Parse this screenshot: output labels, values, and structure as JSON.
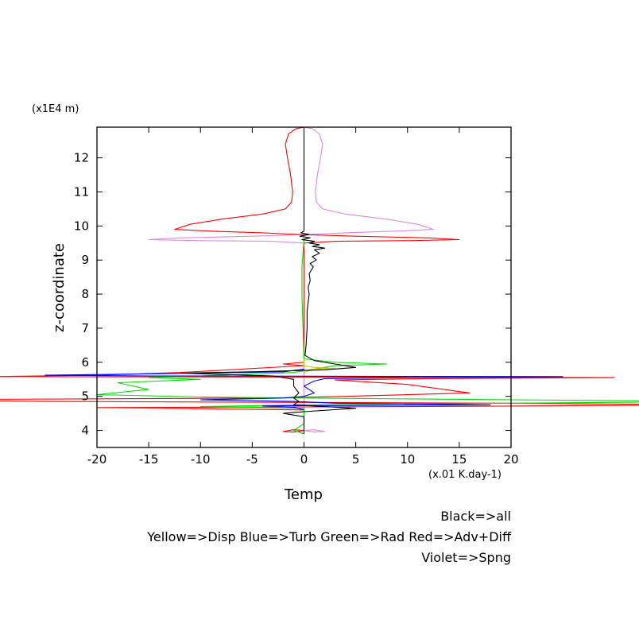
{
  "chart_data": {
    "type": "line",
    "xlabel": "Temp",
    "xunit": "(x.01 K.day-1)",
    "ylabel": "z-coordinate",
    "yunit": "(x1E4 m)",
    "xlim": [
      -20,
      20
    ],
    "ylim": [
      3.5,
      12.9
    ],
    "xticks": [
      -20,
      -15,
      -10,
      -5,
      0,
      5,
      10,
      15,
      20
    ],
    "yticks": [
      4,
      5,
      6,
      7,
      8,
      9,
      10,
      11,
      12
    ],
    "legend": [
      "Black=>all",
      "Yellow=>Disp Blue=>Turb Green=>Rad Red=>Adv+Diff",
      "Violet=>Spng"
    ],
    "colors": {
      "all": "#000000",
      "disp": "#c8c800",
      "turb": "#0000ff",
      "rad": "#00dd00",
      "adv_diff": "#ff0000",
      "spng": "#dd88dd"
    },
    "series": [
      {
        "name": "Violet=>Spng",
        "color": "#dd88dd",
        "points": [
          [
            0,
            12.9
          ],
          [
            0.8,
            12.85
          ],
          [
            1.5,
            12.7
          ],
          [
            1.8,
            12.4
          ],
          [
            1.6,
            12
          ],
          [
            1.3,
            11.5
          ],
          [
            1.1,
            11
          ],
          [
            1.2,
            10.7
          ],
          [
            1.8,
            10.5
          ],
          [
            4,
            10.35
          ],
          [
            8,
            10.2
          ],
          [
            11,
            10.05
          ],
          [
            12.5,
            9.9
          ],
          [
            9,
            9.85
          ],
          [
            4,
            9.8
          ],
          [
            0.5,
            9.75
          ],
          [
            -5,
            9.7
          ],
          [
            -12,
            9.65
          ],
          [
            -15,
            9.6
          ],
          [
            -10,
            9.57
          ],
          [
            -3,
            9.55
          ],
          [
            0,
            9.5
          ],
          [
            0,
            4
          ],
          [
            1,
            3.95
          ],
          [
            2,
            3.97
          ],
          [
            1,
            4.02
          ],
          [
            0,
            4
          ]
        ]
      },
      {
        "name": "Red=>Adv+Diff",
        "color": "#ff0000",
        "points": [
          [
            0,
            12.9
          ],
          [
            -0.8,
            12.85
          ],
          [
            -1.5,
            12.7
          ],
          [
            -1.8,
            12.4
          ],
          [
            -1.6,
            12
          ],
          [
            -1.3,
            11.5
          ],
          [
            -1.1,
            11
          ],
          [
            -1.2,
            10.7
          ],
          [
            -1.8,
            10.5
          ],
          [
            -4,
            10.35
          ],
          [
            -8,
            10.2
          ],
          [
            -11,
            10.05
          ],
          [
            -12.5,
            9.9
          ],
          [
            -9,
            9.85
          ],
          [
            -4,
            9.8
          ],
          [
            -0.5,
            9.75
          ],
          [
            5,
            9.7
          ],
          [
            12,
            9.65
          ],
          [
            15,
            9.6
          ],
          [
            10,
            9.57
          ],
          [
            3,
            9.55
          ],
          [
            0,
            9.5
          ],
          [
            0,
            6
          ],
          [
            -2,
            5.95
          ],
          [
            0,
            5.9
          ],
          [
            -12,
            5.7
          ],
          [
            -20,
            5.62
          ],
          [
            -30,
            5.58
          ],
          [
            30,
            5.55
          ],
          [
            12,
            5.52
          ],
          [
            3,
            5.48
          ],
          [
            10,
            5.35
          ],
          [
            16,
            5.1
          ],
          [
            4,
            5
          ],
          [
            -3,
            4.95
          ],
          [
            -40,
            4.9
          ],
          [
            -25,
            4.85
          ],
          [
            20,
            4.8
          ],
          [
            40,
            4.75
          ],
          [
            10,
            4.7
          ],
          [
            -20,
            4.67
          ],
          [
            0,
            4.6
          ],
          [
            0,
            4
          ],
          [
            -1,
            3.95
          ],
          [
            -2,
            3.97
          ],
          [
            -1,
            4.02
          ],
          [
            0,
            4
          ]
        ]
      },
      {
        "name": "Green=>Rad",
        "color": "#00dd00",
        "points": [
          [
            0,
            9.6
          ],
          [
            -0.2,
            8.8
          ],
          [
            -0.2,
            8
          ],
          [
            -0.1,
            7
          ],
          [
            0,
            6.1
          ],
          [
            3,
            6
          ],
          [
            8,
            5.95
          ],
          [
            3,
            5.9
          ],
          [
            -1,
            5.7
          ],
          [
            -10,
            5.6
          ],
          [
            -15,
            5.55
          ],
          [
            -10,
            5.5
          ],
          [
            -18,
            5.4
          ],
          [
            -15,
            5.2
          ],
          [
            -20,
            5.05
          ],
          [
            -10,
            4.98
          ],
          [
            0,
            4.95
          ],
          [
            20,
            4.9
          ],
          [
            40,
            4.85
          ],
          [
            20,
            4.8
          ],
          [
            0,
            4.75
          ],
          [
            -10,
            4.7
          ],
          [
            0,
            4.65
          ],
          [
            0,
            4.2
          ],
          [
            -1,
            4
          ],
          [
            0,
            3.9
          ]
        ]
      },
      {
        "name": "Blue=>Turb",
        "color": "#0000ff",
        "points": [
          [
            0,
            5.8
          ],
          [
            -2,
            5.72
          ],
          [
            -10,
            5.68
          ],
          [
            -25,
            5.62
          ],
          [
            -15,
            5.6
          ],
          [
            25,
            5.58
          ],
          [
            10,
            5.55
          ],
          [
            2,
            5.52
          ],
          [
            1,
            5.45
          ],
          [
            0,
            5.3
          ],
          [
            1,
            5.1
          ],
          [
            0,
            5
          ],
          [
            -2,
            4.95
          ],
          [
            -10,
            4.9
          ],
          [
            -1,
            4.85
          ],
          [
            3,
            4.8
          ],
          [
            18,
            4.75
          ],
          [
            -4,
            4.72
          ],
          [
            -1,
            4.68
          ],
          [
            0,
            4.6
          ]
        ]
      },
      {
        "name": "Yellow=>Disp",
        "color": "#c8c800",
        "points": [
          [
            0,
            6.1
          ],
          [
            0,
            5.9
          ],
          [
            1,
            5.85
          ],
          [
            3,
            5.82
          ],
          [
            1,
            5.8
          ],
          [
            0,
            5.7
          ]
        ]
      },
      {
        "name": "Black=>all",
        "color": "#000000",
        "points": [
          [
            0,
            12.9
          ],
          [
            0,
            10
          ],
          [
            0,
            9.85
          ],
          [
            -0.3,
            9.8
          ],
          [
            0.5,
            9.75
          ],
          [
            -0.4,
            9.7
          ],
          [
            0.6,
            9.65
          ],
          [
            -0.2,
            9.6
          ],
          [
            1,
            9.55
          ],
          [
            0.5,
            9.5
          ],
          [
            1.5,
            9.45
          ],
          [
            0.8,
            9.4
          ],
          [
            2,
            9.35
          ],
          [
            1,
            9.3
          ],
          [
            1.5,
            9.2
          ],
          [
            0.8,
            9.1
          ],
          [
            1.2,
            9
          ],
          [
            0.6,
            8.9
          ],
          [
            0.9,
            8.8
          ],
          [
            0.5,
            8.6
          ],
          [
            0.6,
            8.4
          ],
          [
            0.4,
            8.2
          ],
          [
            0.5,
            8
          ],
          [
            0.3,
            7.5
          ],
          [
            0.3,
            7
          ],
          [
            0.2,
            6.5
          ],
          [
            0.1,
            6.2
          ],
          [
            1,
            6.05
          ],
          [
            3,
            5.95
          ],
          [
            5,
            5.85
          ],
          [
            2,
            5.78
          ],
          [
            -5,
            5.72
          ],
          [
            -12,
            5.68
          ],
          [
            -3,
            5.6
          ],
          [
            -1,
            5.5
          ],
          [
            -1,
            5.3
          ],
          [
            -0.5,
            5.1
          ],
          [
            -1,
            4.95
          ],
          [
            -0.5,
            4.85
          ],
          [
            -1,
            4.75
          ],
          [
            5,
            4.65
          ],
          [
            0,
            4.55
          ],
          [
            -2,
            4.5
          ],
          [
            0,
            4.4
          ],
          [
            0,
            4.1
          ],
          [
            0,
            3.9
          ]
        ]
      }
    ]
  }
}
